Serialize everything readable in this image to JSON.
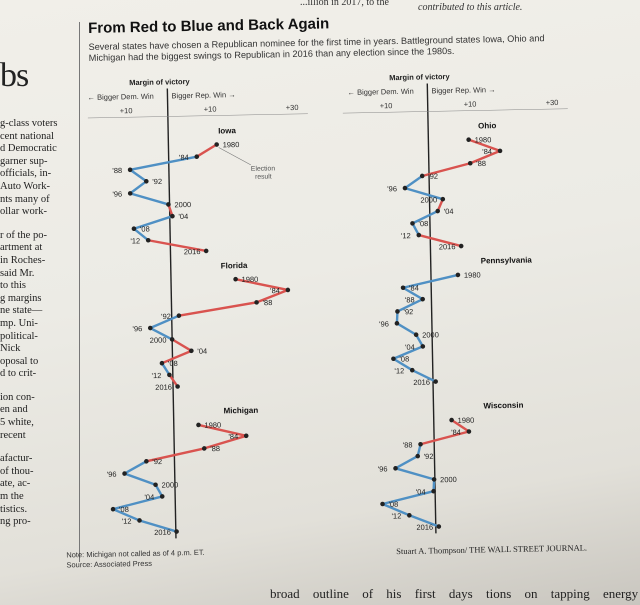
{
  "top": {
    "snippet_left": "...illion in 2017, to the",
    "snippet_right": "contributed to this article."
  },
  "left_column": {
    "headline_fragment": "bs",
    "paragraphs": [
      [
        "g-class voters",
        "cent national",
        "d Democratic",
        "garner sup-",
        "officials, in-",
        "Auto Work-",
        "nts many of",
        "ollar work-"
      ],
      [
        "r of the po-",
        "artment at",
        "in Roches-",
        "said Mr.",
        "to this",
        "g margins",
        "ne state—",
        "mp. Uni-",
        "political-",
        "Nick",
        "oposal to",
        "d to crit-"
      ],
      [
        "ion con-",
        "en and",
        "5 white,",
        "recent"
      ],
      [
        "afactur-",
        "of thou-",
        "ate, ac-",
        "m the",
        "tistics.",
        "ng pro-"
      ]
    ]
  },
  "graphic": {
    "title": "From Red to Blue and Back Again",
    "subtitle": "Several states have chosen a Republican nominee for the first time in years. Battleground states Iowa, Ohio and Michigan had the biggest swings to Republican in 2016 than any election since the 1980s.",
    "margin_header": "Margin of victory",
    "dem_label": "Bigger Dem. Win",
    "rep_label": "Bigger Rep. Win",
    "ticks": [
      "+10",
      "+10",
      "+30"
    ],
    "annotation": [
      "Election",
      "result"
    ],
    "note": "Note: Michigan not called as of 4 p.m. ET.",
    "source": "Source: Associated Press",
    "credit": "Stuart A. Thompson/ THE WALL STREET JOURNAL.",
    "colors": {
      "rep": "#d9534f",
      "dem": "#4f90c4",
      "axis": "#222222"
    }
  },
  "chart_data": [
    {
      "type": "line",
      "state": "Iowa",
      "x": [
        "1980",
        "1984",
        "1988",
        "1992",
        "1996",
        "2000",
        "2004",
        "2008",
        "2012",
        "2016"
      ],
      "y": [
        1980,
        1984,
        1988,
        1992,
        1996,
        2000,
        2004,
        2008,
        2012,
        2016
      ],
      "margin": [
        12.7,
        7.4,
        -10.2,
        -6.0,
        -10.3,
        -0.3,
        0.7,
        -9.5,
        -5.8,
        9.4
      ],
      "xlabel": "Margin of victory"
    },
    {
      "type": "line",
      "state": "Ohio",
      "x": [
        "1980",
        "1984",
        "1988",
        "1992",
        "1996",
        "2000",
        "2004",
        "2008",
        "2012",
        "2016"
      ],
      "margin": [
        10.6,
        18.8,
        10.9,
        -1.8,
        -6.4,
        3.5,
        2.1,
        -4.6,
        -3.0,
        8.1
      ]
    },
    {
      "type": "line",
      "state": "Florida",
      "x": [
        "1980",
        "1984",
        "1988",
        "1992",
        "1996",
        "2000",
        "2004",
        "2008",
        "2012",
        "2016"
      ],
      "margin": [
        17.0,
        30.7,
        22.4,
        1.9,
        -5.7,
        0.0,
        5.0,
        -2.8,
        -0.9,
        1.2
      ]
    },
    {
      "type": "line",
      "state": "Pennsylvania",
      "x": [
        "1980",
        "1984",
        "1988",
        "1992",
        "1996",
        "2000",
        "2004",
        "2008",
        "2012",
        "2016"
      ],
      "margin": [
        7.1,
        -7.4,
        -2.3,
        -9.0,
        -9.2,
        -4.2,
        -2.5,
        -10.3,
        -5.4,
        0.7
      ]
    },
    {
      "type": "line",
      "state": "Michigan",
      "x": [
        "1980",
        "1984",
        "1988",
        "1992",
        "1996",
        "2000",
        "2004",
        "2008",
        "2012",
        "2016"
      ],
      "margin": [
        6.5,
        19.0,
        7.9,
        -7.4,
        -13.2,
        -5.1,
        -3.4,
        -16.4,
        -9.5,
        0.2
      ]
    },
    {
      "type": "line",
      "state": "Wisconsin",
      "x": [
        "1980",
        "1984",
        "1988",
        "1992",
        "1996",
        "2000",
        "2004",
        "2008",
        "2012",
        "2016"
      ],
      "margin": [
        4.7,
        9.2,
        -3.6,
        -4.4,
        -10.3,
        -0.2,
        -0.4,
        -13.9,
        -6.9,
        0.8
      ]
    }
  ]
}
